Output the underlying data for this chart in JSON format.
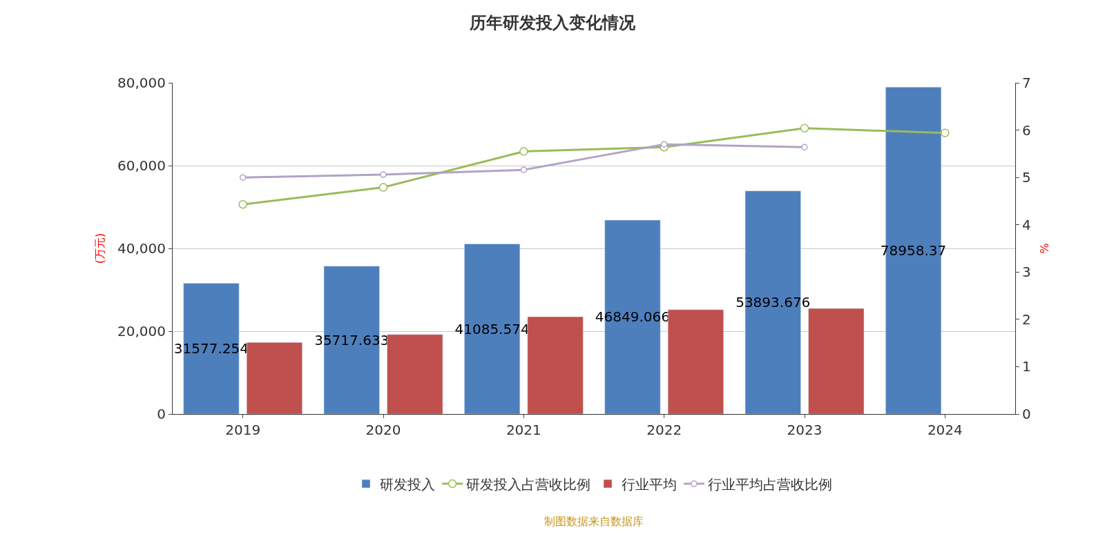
{
  "chart_data": {
    "type": "bar",
    "title": "历年研发投入变化情况",
    "ylabel": "(万元)",
    "y2label": "%",
    "categories": [
      "2019",
      "2020",
      "2021",
      "2022",
      "2023",
      "2024"
    ],
    "series": [
      {
        "name": "研发投入",
        "color": "#4e7fbd",
        "values": [
          31577.254,
          35717.633,
          41085.574,
          46849.066,
          53893.676,
          78958.37
        ],
        "value_labels": [
          "31577.254",
          "35717.633",
          "41085.574",
          "46849.066",
          "53893.676",
          "78958.37"
        ]
      },
      {
        "name": "研发投入占营收比例",
        "type": "line",
        "axis": "y2",
        "color": "#9bbb59",
        "values": [
          4.43,
          4.79,
          5.55,
          5.64,
          6.04,
          5.94
        ]
      },
      {
        "name": "行业平均",
        "color": "#c0504d",
        "values": [
          17300,
          19200,
          23500,
          25200,
          25500,
          null
        ]
      },
      {
        "name": "行业平均占营收比例",
        "type": "line",
        "axis": "y2",
        "color": "#b3a2c7",
        "values": [
          5.0,
          5.06,
          5.16,
          5.7,
          5.64,
          null
        ]
      }
    ],
    "ylim": [
      0,
      80000
    ],
    "yticks": [
      {
        "value": 0,
        "label": "0"
      },
      {
        "value": 20000,
        "label": "20,000"
      },
      {
        "value": 40000,
        "label": "40,000"
      },
      {
        "value": 60000,
        "label": "60,000"
      },
      {
        "value": 80000,
        "label": "80,000"
      }
    ],
    "y2lim": [
      0,
      7
    ],
    "y2ticks": [
      0,
      1,
      2,
      3,
      4,
      5,
      6,
      7
    ],
    "grid": "y",
    "legend": "bottom",
    "marker": "circle",
    "annotations": [
      "制图数据来自数据库"
    ]
  }
}
